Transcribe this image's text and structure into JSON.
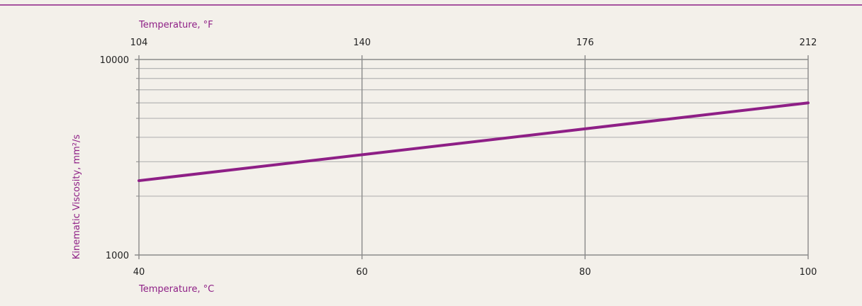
{
  "colors": {
    "background": "#f3f0ea",
    "accent": "#8e1f86",
    "grid": "#b4b4b4",
    "axis": "#8a8a8a",
    "text": "#222222"
  },
  "chart_data": {
    "type": "line",
    "x_axis_bottom": {
      "label": "Temperature, °C",
      "range": [
        40,
        100
      ],
      "ticks": [
        "40",
        "60",
        "80",
        "100"
      ]
    },
    "x_axis_top": {
      "label": "Temperature, °F",
      "range": [
        104,
        212
      ],
      "ticks": [
        "104",
        "140",
        "176",
        "212"
      ]
    },
    "y_axis": {
      "label": "Kinematic Viscosity, mm²/s",
      "scale": "log",
      "range": [
        1000,
        10000
      ],
      "ticks": [
        "1000",
        "10000"
      ],
      "minor_gridlines": [
        2000,
        3000,
        4000,
        5000,
        6000,
        7000,
        8000,
        9000
      ]
    },
    "grid": true,
    "series": [
      {
        "x": [
          40,
          100
        ],
        "y": [
          2400,
          6000
        ]
      }
    ]
  }
}
